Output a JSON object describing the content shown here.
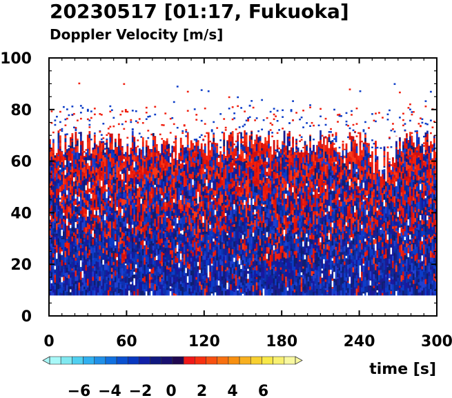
{
  "chart_data": {
    "type": "heatmap",
    "title": "20230517 [01:17, Fukuoka]",
    "subtitle": "Doppler Velocity [m/s]",
    "xlabel": "time [s]",
    "ylabel": "",
    "xlim": [
      0,
      300
    ],
    "ylim": [
      0,
      100
    ],
    "x_ticks": [
      0,
      60,
      120,
      180,
      240,
      300
    ],
    "y_ticks": [
      0,
      20,
      40,
      60,
      80,
      100
    ],
    "colorbar": {
      "label": "",
      "range": [
        -8,
        8
      ],
      "ticks": [
        -6,
        -4,
        -2,
        0,
        2,
        4,
        6
      ],
      "colors": [
        "#a8f8f8",
        "#80e8f0",
        "#50d0f0",
        "#30b0f0",
        "#2090e8",
        "#1070e0",
        "#0a50d0",
        "#0838c0",
        "#1020a8",
        "#101880",
        "#181070",
        "#200850",
        "#f01818",
        "#f83010",
        "#f85010",
        "#f87010",
        "#f89010",
        "#f8b020",
        "#f8d030",
        "#f8e848",
        "#f8f070",
        "#f8f8a0"
      ]
    },
    "data_region": {
      "height_min": 8,
      "typical_top_height": 67,
      "sparse_top_height": 85
    },
    "grid": false
  }
}
